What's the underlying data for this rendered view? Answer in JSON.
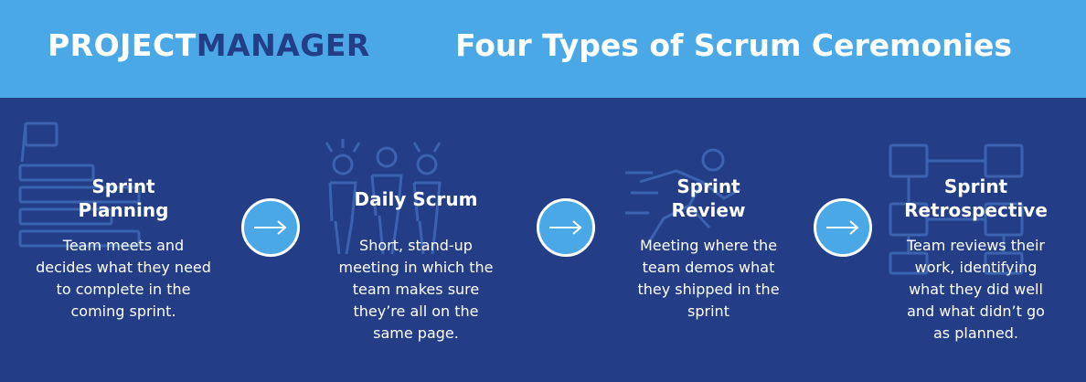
{
  "header": {
    "logo_part1": "PROJECT",
    "logo_part2": "MANAGER",
    "title": "Four Types of Scrum Ceremonies"
  },
  "ceremonies": [
    {
      "heading_lines": [
        "Sprint",
        "Planning"
      ],
      "body_lines": [
        "Team meets and",
        "decides what they need",
        "to complete in the",
        "coming sprint."
      ],
      "icon": "flag-plan-icon"
    },
    {
      "heading_lines": [
        "Daily Scrum"
      ],
      "body_lines": [
        "Short, stand-up",
        "meeting in which the",
        "team makes sure",
        "they’re all on the",
        "same page."
      ],
      "icon": "standup-people-icon"
    },
    {
      "heading_lines": [
        "Sprint",
        "Review"
      ],
      "body_lines": [
        "Meeting where the",
        "team demos what",
        "they shipped in the",
        "sprint"
      ],
      "icon": "runner-icon"
    },
    {
      "heading_lines": [
        "Sprint",
        "Retrospective"
      ],
      "body_lines": [
        "Team reviews their",
        "work, identifying",
        "what they did well",
        "and what didn’t go",
        "as planned."
      ],
      "icon": "flowchart-icon"
    }
  ],
  "arrows": [
    "arrow-right-icon",
    "arrow-right-icon",
    "arrow-right-icon"
  ],
  "colors": {
    "header_bg": "#4aa8e6",
    "main_bg": "#233d87",
    "logo_accent": "#233d87",
    "icon_outline": "#3c63b0"
  }
}
